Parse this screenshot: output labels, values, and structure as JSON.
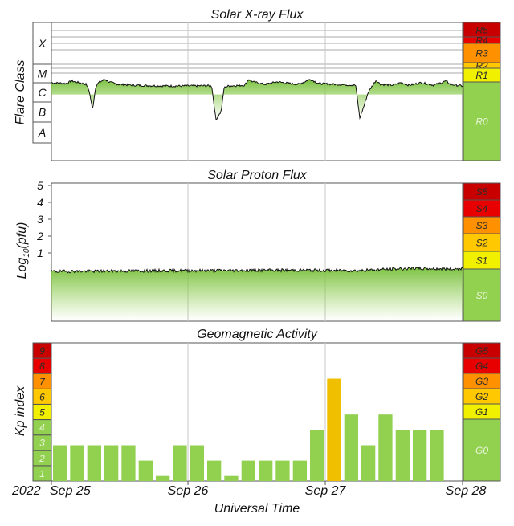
{
  "chart_data": [
    {
      "type": "area",
      "title": "Solar X-ray Flux",
      "ylabel": "Flare Class",
      "y_scale": "log",
      "flare_classes": [
        "X",
        "M",
        "C",
        "B",
        "A"
      ],
      "scale_labels": [
        "R5",
        "R4",
        "R3",
        "R2",
        "R1",
        "R0"
      ],
      "scale_colors": [
        "#c80000",
        "#e80000",
        "#ff9000",
        "#ffc800",
        "#f0f000",
        "#92d050"
      ],
      "anchors": [
        [
          0,
          -5.9
        ],
        [
          0.035,
          -5.95
        ],
        [
          0.05,
          -5.8
        ],
        [
          0.085,
          -6.0
        ],
        [
          0.092,
          -6.4
        ],
        [
          0.1,
          -7.5
        ],
        [
          0.108,
          -6.1
        ],
        [
          0.115,
          -5.9
        ],
        [
          0.13,
          -5.7
        ],
        [
          0.14,
          -5.85
        ],
        [
          0.16,
          -6.0
        ],
        [
          0.2,
          -6.05
        ],
        [
          0.24,
          -6.08
        ],
        [
          0.3,
          -6.1
        ],
        [
          0.38,
          -6.08
        ],
        [
          0.39,
          -6.1
        ],
        [
          0.4,
          -8.1
        ],
        [
          0.413,
          -7.6
        ],
        [
          0.42,
          -6.2
        ],
        [
          0.43,
          -6.1
        ],
        [
          0.47,
          -6.05
        ],
        [
          0.48,
          -5.7
        ],
        [
          0.49,
          -5.85
        ],
        [
          0.52,
          -6.0
        ],
        [
          0.55,
          -5.85
        ],
        [
          0.58,
          -5.95
        ],
        [
          0.6,
          -6.0
        ],
        [
          0.63,
          -5.7
        ],
        [
          0.65,
          -5.95
        ],
        [
          0.69,
          -6.0
        ],
        [
          0.74,
          -6.05
        ],
        [
          0.75,
          -8.0
        ],
        [
          0.76,
          -7.3
        ],
        [
          0.77,
          -6.5
        ],
        [
          0.78,
          -6.1
        ],
        [
          0.79,
          -5.75
        ],
        [
          0.8,
          -6.0
        ],
        [
          0.83,
          -6.05
        ],
        [
          0.85,
          -5.9
        ],
        [
          0.87,
          -6.05
        ],
        [
          0.9,
          -5.9
        ],
        [
          0.93,
          -6.05
        ],
        [
          0.96,
          -5.8
        ],
        [
          0.97,
          -6.0
        ],
        [
          1.0,
          -6.1
        ]
      ]
    },
    {
      "type": "area",
      "title": "Solar Proton Flux",
      "ylabel_base": "Log",
      "ylabel_sub": "10",
      "ylabel_unit": "(pfu)",
      "ylim": [
        -1,
        6
      ],
      "yticks": [
        "1",
        "2",
        "3",
        "4",
        "5"
      ],
      "scale_labels": [
        "S5",
        "S4",
        "S3",
        "S2",
        "S1",
        "S0"
      ],
      "scale_colors": [
        "#c80000",
        "#e80000",
        "#ff9000",
        "#ffc800",
        "#f0f000",
        "#92d050"
      ],
      "anchors": [
        [
          0,
          -0.1
        ],
        [
          0.3,
          -0.05
        ],
        [
          0.6,
          -0.02
        ],
        [
          0.75,
          -0.05
        ],
        [
          0.8,
          0.02
        ],
        [
          0.87,
          0.08
        ],
        [
          1.0,
          0.05
        ]
      ]
    },
    {
      "type": "bar",
      "title": "Geomagnetic Activity",
      "ylabel": "Kp index",
      "xlabel": "Universal Time",
      "ylim": [
        0,
        9
      ],
      "kp_levels": [
        "1",
        "2",
        "3",
        "4",
        "5",
        "6",
        "7",
        "8",
        "9"
      ],
      "kp_colors": [
        "#92d050",
        "#92d050",
        "#92d050",
        "#92d050",
        "#f0f000",
        "#ffc800",
        "#ff9000",
        "#e80000",
        "#c80000"
      ],
      "scale_labels": [
        "G5",
        "G4",
        "G3",
        "G2",
        "G1",
        "G0"
      ],
      "scale_colors": [
        "#c80000",
        "#e80000",
        "#ff9000",
        "#ffc800",
        "#f0f000",
        "#92d050"
      ],
      "values": [
        2.33,
        2.33,
        2.33,
        2.33,
        2.33,
        1.33,
        0.33,
        2.33,
        2.33,
        1.33,
        0.33,
        1.33,
        1.33,
        1.33,
        1.33,
        3.33,
        6.67,
        4.33,
        2.33,
        4.33,
        3.33,
        3.33,
        3.33,
        0
      ],
      "bar_colors": [
        "#92d050",
        "#92d050",
        "#92d050",
        "#92d050",
        "#92d050",
        "#92d050",
        "#92d050",
        "#92d050",
        "#92d050",
        "#92d050",
        "#92d050",
        "#92d050",
        "#92d050",
        "#92d050",
        "#92d050",
        "#92d050",
        "#f0c000",
        "#92d050",
        "#92d050",
        "#92d050",
        "#92d050",
        "#92d050",
        "#92d050",
        "#92d050"
      ]
    }
  ],
  "x_axis": {
    "year": "2022",
    "tick_labels": [
      "Sep 25",
      "Sep 26",
      "Sep 27",
      "Sep 28"
    ],
    "xlabel": "Universal Time"
  }
}
